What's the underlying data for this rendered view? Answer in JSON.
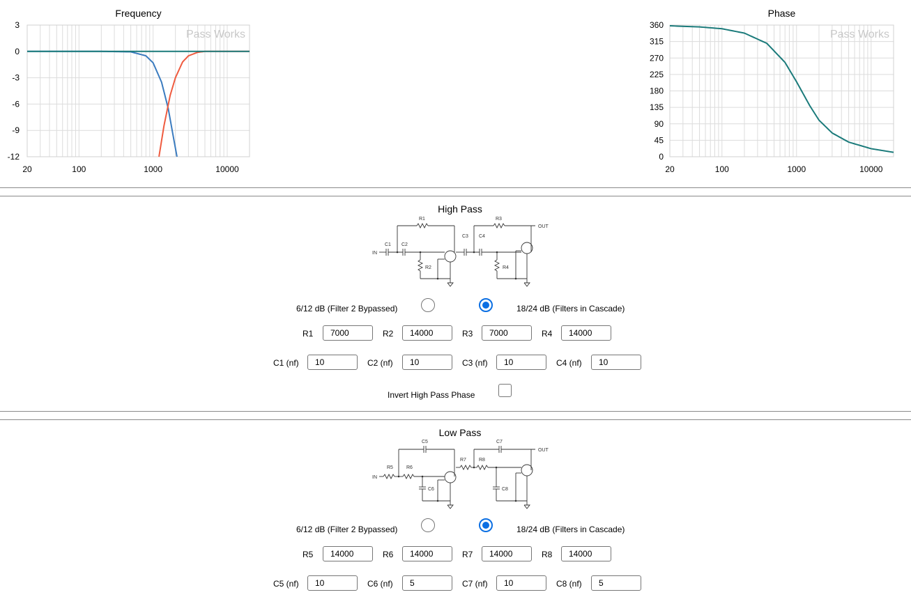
{
  "charts": {
    "frequency": {
      "title": "Frequency",
      "watermark": "Pass Works",
      "y_ticks": [
        "3",
        "0",
        "-3",
        "-6",
        "-9",
        "-12"
      ],
      "x_ticks": [
        "20",
        "100",
        "1000",
        "10000"
      ]
    },
    "phase": {
      "title": "Phase",
      "watermark": "Pass Works",
      "y_ticks": [
        "360",
        "315",
        "270",
        "225",
        "180",
        "135",
        "90",
        "45",
        "0"
      ],
      "x_ticks": [
        "20",
        "100",
        "1000",
        "10000"
      ]
    }
  },
  "chart_data": [
    {
      "type": "line",
      "title": "Frequency",
      "x_scale": "log",
      "xlim": [
        20,
        20000
      ],
      "ylim": [
        -12,
        3
      ],
      "grid": true,
      "series": [
        {
          "color": "#3a7bbf",
          "x": [
            20,
            200,
            500,
            800,
            1000,
            1300,
            1600,
            1900,
            2100
          ],
          "y": [
            0,
            0,
            -0.05,
            -0.5,
            -1.3,
            -3.5,
            -6.5,
            -10,
            -12
          ]
        },
        {
          "color": "#ef5b3f",
          "x": [
            1200,
            1400,
            1700,
            2000,
            2500,
            3000,
            4000,
            5000,
            8000,
            20000
          ],
          "y": [
            -12,
            -8.5,
            -5,
            -3,
            -1.2,
            -0.5,
            -0.1,
            0,
            0,
            0
          ]
        },
        {
          "color": "#1a7a7a",
          "x": [
            20,
            20000
          ],
          "y": [
            0,
            0
          ]
        }
      ]
    },
    {
      "type": "line",
      "title": "Phase",
      "x_scale": "log",
      "xlim": [
        20,
        20000
      ],
      "ylim": [
        0,
        360
      ],
      "grid": true,
      "series": [
        {
          "color": "#1a7a7a",
          "x": [
            20,
            50,
            100,
            200,
            400,
            700,
            1000,
            1500,
            2000,
            3000,
            5000,
            10000,
            20000
          ],
          "y": [
            358,
            355,
            350,
            338,
            310,
            258,
            205,
            140,
            100,
            65,
            40,
            22,
            12
          ]
        }
      ]
    }
  ],
  "high_pass": {
    "title": "High Pass",
    "option_bypassed": "6/12 dB (Filter 2 Bypassed)",
    "option_cascade": "18/24 dB (Filters in Cascade)",
    "selected": "cascade",
    "r1_label": "R1",
    "r1_value": "7000",
    "r2_label": "R2",
    "r2_value": "14000",
    "r3_label": "R3",
    "r3_value": "7000",
    "r4_label": "R4",
    "r4_value": "14000",
    "c1_label": "C1 (nf)",
    "c1_value": "10",
    "c2_label": "C2 (nf)",
    "c2_value": "10",
    "c3_label": "C3 (nf)",
    "c3_value": "10",
    "c4_label": "C4 (nf)",
    "c4_value": "10",
    "invert_label": "Invert High Pass Phase",
    "invert_checked": false,
    "schematic": {
      "in": "IN",
      "out": "OUT",
      "c1": "C1",
      "c2": "C2",
      "c3": "C3",
      "c4": "C4",
      "r1": "R1",
      "r2": "R2",
      "r3": "R3",
      "r4": "R4"
    }
  },
  "low_pass": {
    "title": "Low Pass",
    "option_bypassed": "6/12 dB (Filter 2 Bypassed)",
    "option_cascade": "18/24 dB (Filters in Cascade)",
    "selected": "cascade",
    "r5_label": "R5",
    "r5_value": "14000",
    "r6_label": "R6",
    "r6_value": "14000",
    "r7_label": "R7",
    "r7_value": "14000",
    "r8_label": "R8",
    "r8_value": "14000",
    "c5_label": "C5 (nf)",
    "c5_value": "10",
    "c6_label": "C6 (nf)",
    "c6_value": "5",
    "c7_label": "C7 (nf)",
    "c7_value": "10",
    "c8_label": "C8 (nf)",
    "c8_value": "5",
    "schematic": {
      "in": "IN",
      "out": "OUT",
      "c5": "C5",
      "c6": "C6",
      "c7": "C7",
      "c8": "C8",
      "r5": "R5",
      "r6": "R6",
      "r7": "R7",
      "r8": "R8"
    }
  }
}
